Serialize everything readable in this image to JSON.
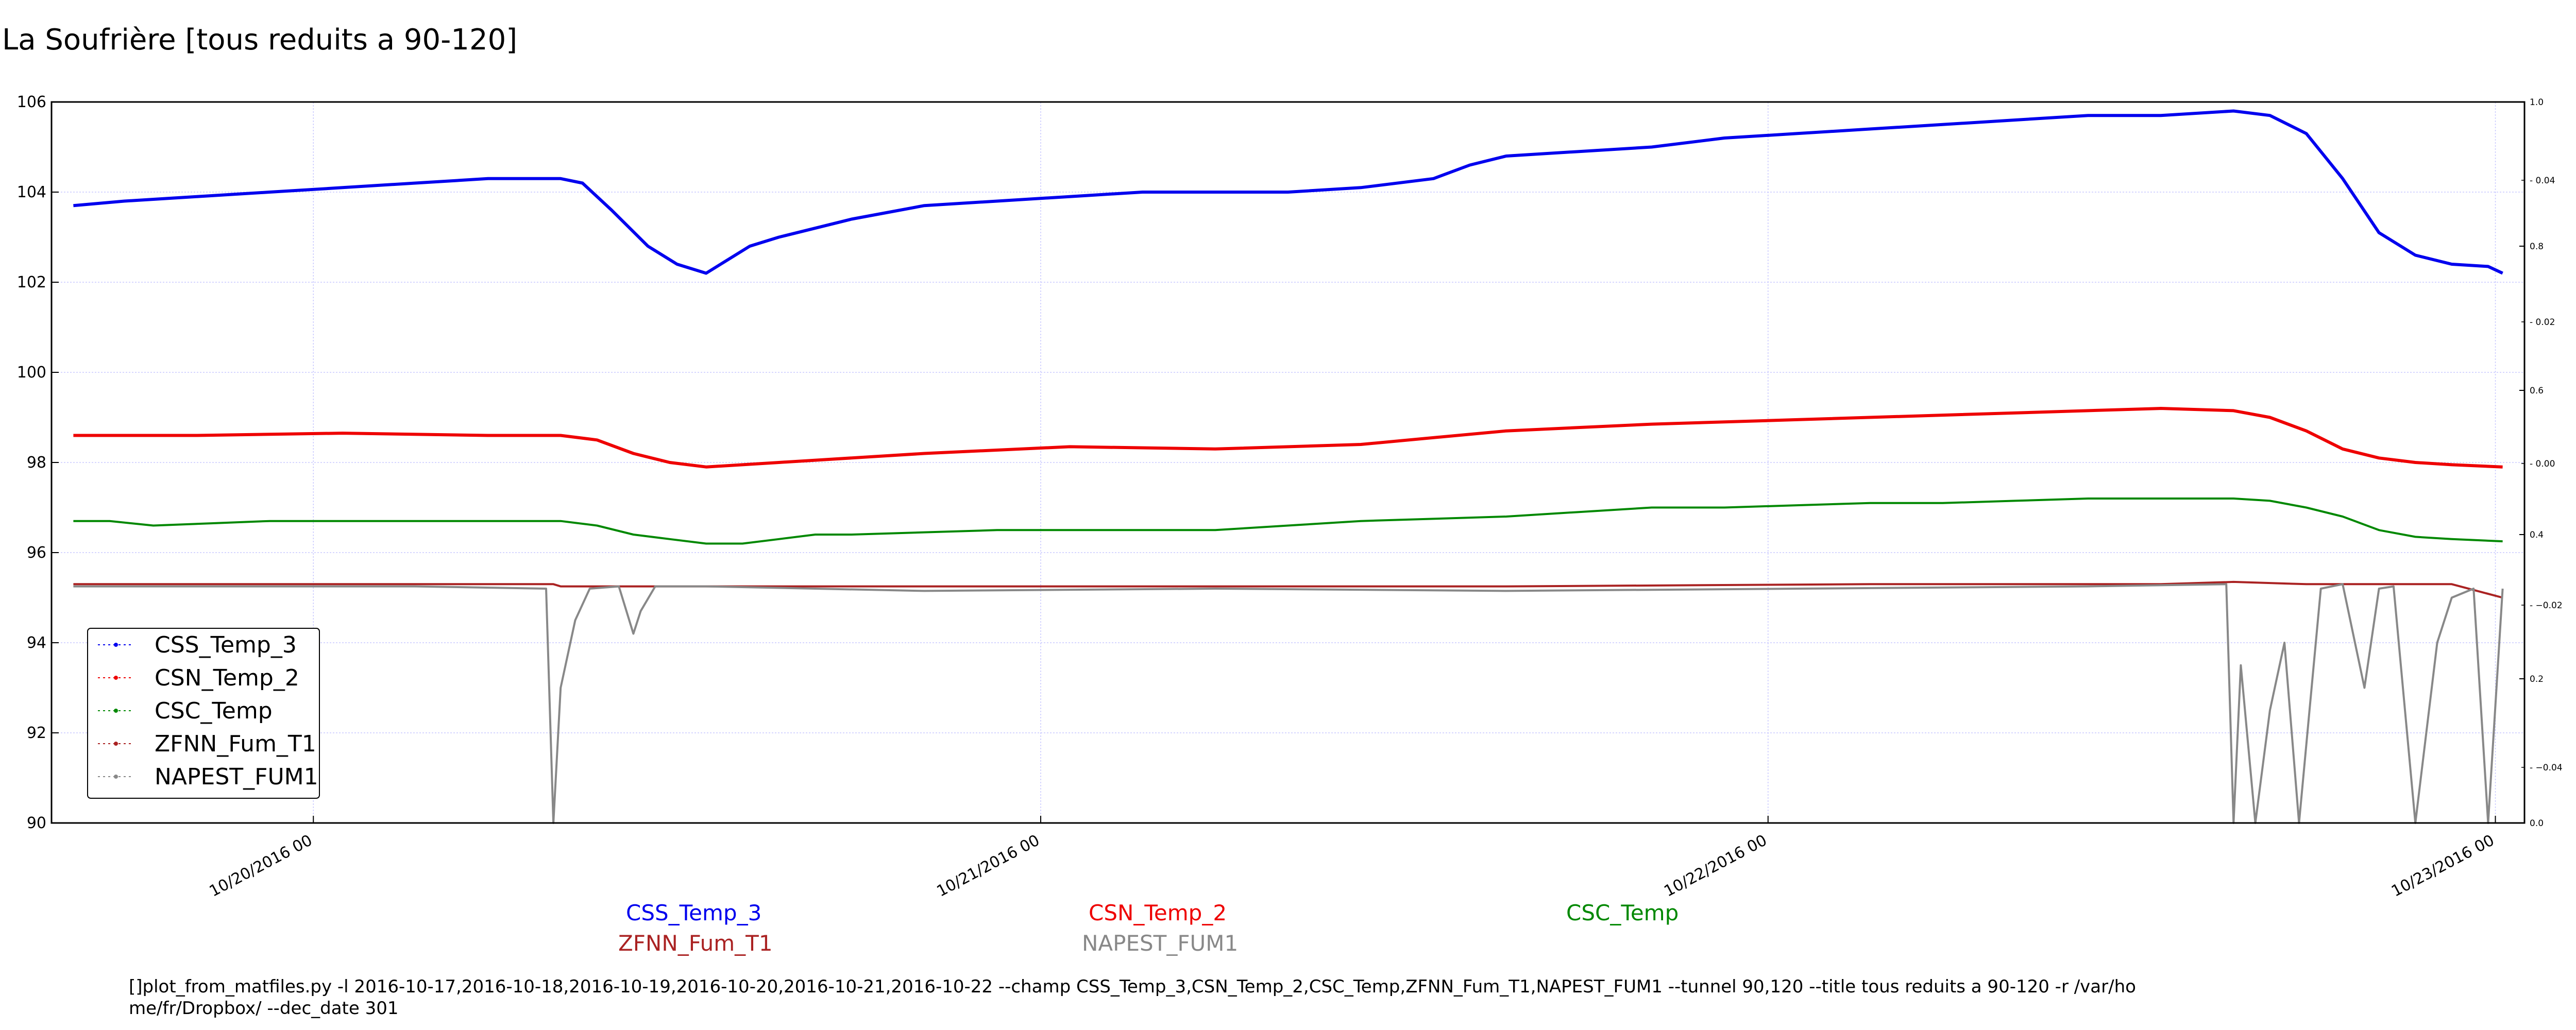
{
  "chart_data": {
    "type": "line",
    "title": "La Soufrière [tous reduits a 90-120]",
    "xlabel": "",
    "ylabel": "",
    "xlim": [
      0.0,
      3.4
    ],
    "ylim": [
      90,
      106
    ],
    "yticks": [
      "90",
      "92",
      "94",
      "96",
      "98",
      "100",
      "102",
      "104",
      "106"
    ],
    "xticks": [
      {
        "x": 0.36,
        "label": "10/20/2016 00"
      },
      {
        "x": 1.36,
        "label": "10/21/2016 00"
      },
      {
        "x": 2.36,
        "label": "10/22/2016 00"
      },
      {
        "x": 3.36,
        "label": "10/23/2016 00"
      }
    ],
    "right_axis": {
      "ticks": [
        "0.0",
        "0.2",
        "0.4",
        "0.6",
        "0.8",
        "1.0"
      ],
      "minor_ticks": [
        "−0.04",
        "−0.02",
        "0.00",
        "0.02",
        "0.04"
      ]
    },
    "grid": true,
    "legend_position": "lower-left",
    "series": [
      {
        "name": "CSS_Temp_3",
        "color": "#0000ee",
        "x": [
          0.03,
          0.1,
          0.2,
          0.3,
          0.4,
          0.5,
          0.6,
          0.65,
          0.7,
          0.73,
          0.77,
          0.82,
          0.86,
          0.9,
          0.92,
          0.96,
          1.0,
          1.1,
          1.2,
          1.3,
          1.4,
          1.5,
          1.6,
          1.7,
          1.8,
          1.9,
          1.95,
          2.0,
          2.1,
          2.2,
          2.3,
          2.4,
          2.5,
          2.6,
          2.7,
          2.8,
          2.9,
          3.0,
          3.05,
          3.1,
          3.15,
          3.2,
          3.25,
          3.3,
          3.35,
          3.37
        ],
        "y": [
          103.7,
          103.8,
          103.9,
          104.0,
          104.1,
          104.2,
          104.3,
          104.3,
          104.3,
          104.2,
          103.6,
          102.8,
          102.4,
          102.2,
          102.4,
          102.8,
          103.0,
          103.4,
          103.7,
          103.8,
          103.9,
          104.0,
          104.0,
          104.0,
          104.1,
          104.3,
          104.6,
          104.8,
          104.9,
          105.0,
          105.2,
          105.3,
          105.4,
          105.5,
          105.6,
          105.7,
          105.7,
          105.8,
          105.7,
          105.3,
          104.3,
          103.1,
          102.6,
          102.4,
          102.35,
          102.2
        ]
      },
      {
        "name": "CSN_Temp_2",
        "color": "#ee0000",
        "x": [
          0.03,
          0.2,
          0.4,
          0.6,
          0.7,
          0.75,
          0.8,
          0.85,
          0.9,
          1.0,
          1.2,
          1.4,
          1.6,
          1.8,
          2.0,
          2.2,
          2.4,
          2.6,
          2.8,
          2.9,
          3.0,
          3.05,
          3.1,
          3.15,
          3.2,
          3.25,
          3.3,
          3.37
        ],
        "y": [
          98.6,
          98.6,
          98.65,
          98.6,
          98.6,
          98.5,
          98.2,
          98.0,
          97.9,
          98.0,
          98.2,
          98.35,
          98.3,
          98.4,
          98.7,
          98.85,
          98.95,
          99.05,
          99.15,
          99.2,
          99.15,
          99.0,
          98.7,
          98.3,
          98.1,
          98.0,
          97.95,
          97.9
        ]
      },
      {
        "name": "CSC_Temp",
        "color": "#008800",
        "x": [
          0.03,
          0.08,
          0.14,
          0.22,
          0.3,
          0.4,
          0.5,
          0.6,
          0.7,
          0.75,
          0.8,
          0.85,
          0.9,
          0.95,
          1.0,
          1.05,
          1.1,
          1.2,
          1.3,
          1.4,
          1.5,
          1.6,
          1.7,
          1.8,
          1.9,
          2.0,
          2.1,
          2.2,
          2.3,
          2.4,
          2.5,
          2.6,
          2.7,
          2.8,
          2.9,
          3.0,
          3.05,
          3.1,
          3.15,
          3.2,
          3.25,
          3.3,
          3.37
        ],
        "y": [
          96.7,
          96.7,
          96.6,
          96.65,
          96.7,
          96.7,
          96.7,
          96.7,
          96.7,
          96.6,
          96.4,
          96.3,
          96.2,
          96.2,
          96.3,
          96.4,
          96.4,
          96.45,
          96.5,
          96.5,
          96.5,
          96.5,
          96.6,
          96.7,
          96.75,
          96.8,
          96.9,
          97.0,
          97.0,
          97.05,
          97.1,
          97.1,
          97.15,
          97.2,
          97.2,
          97.2,
          97.15,
          97.0,
          96.8,
          96.5,
          96.35,
          96.3,
          96.25
        ]
      },
      {
        "name": "ZFNN_Fum_T1",
        "color": "#aa2222",
        "x": [
          0.03,
          0.5,
          0.69,
          0.7,
          1.0,
          1.5,
          2.0,
          2.5,
          2.9,
          3.0,
          3.1,
          3.2,
          3.3,
          3.37
        ],
        "y": [
          95.3,
          95.3,
          95.3,
          95.25,
          95.25,
          95.25,
          95.25,
          95.3,
          95.3,
          95.35,
          95.3,
          95.3,
          95.3,
          95.0
        ]
      },
      {
        "name": "NAPEST_FUM1",
        "color": "#888888",
        "x": [
          0.03,
          0.5,
          0.68,
          0.69,
          0.7,
          0.72,
          0.74,
          0.78,
          0.8,
          0.81,
          0.83,
          0.9,
          1.2,
          1.6,
          2.0,
          2.4,
          2.8,
          2.99,
          3.0,
          3.01,
          3.03,
          3.05,
          3.07,
          3.09,
          3.12,
          3.15,
          3.18,
          3.2,
          3.22,
          3.25,
          3.28,
          3.3,
          3.33,
          3.35,
          3.37
        ],
        "y": [
          95.25,
          95.25,
          95.2,
          90.0,
          93.0,
          94.5,
          95.2,
          95.25,
          94.2,
          94.7,
          95.25,
          95.25,
          95.15,
          95.2,
          95.15,
          95.2,
          95.25,
          95.3,
          90.0,
          93.5,
          90.0,
          92.5,
          94.0,
          90.0,
          95.2,
          95.3,
          93.0,
          95.2,
          95.25,
          90.0,
          94.0,
          95.0,
          95.2,
          90.0,
          95.2
        ]
      }
    ]
  },
  "series_labels": {
    "css": "CSS_Temp_3",
    "csn": "CSN_Temp_2",
    "csc": "CSC_Temp",
    "zfnn": "ZFNN_Fum_T1",
    "napest": "NAPEST_FUM1"
  },
  "command_line": "[]plot_from_matfiles.py -l 2016-10-17,2016-10-18,2016-10-19,2016-10-20,2016-10-21,2016-10-22 --champ CSS_Temp_3,CSN_Temp_2,CSC_Temp,ZFNN_Fum_T1,NAPEST_FUM1 --tunnel 90,120 --title tous reduits a 90-120 -r /var/home/fr/Dropbox/ --dec_date 301"
}
